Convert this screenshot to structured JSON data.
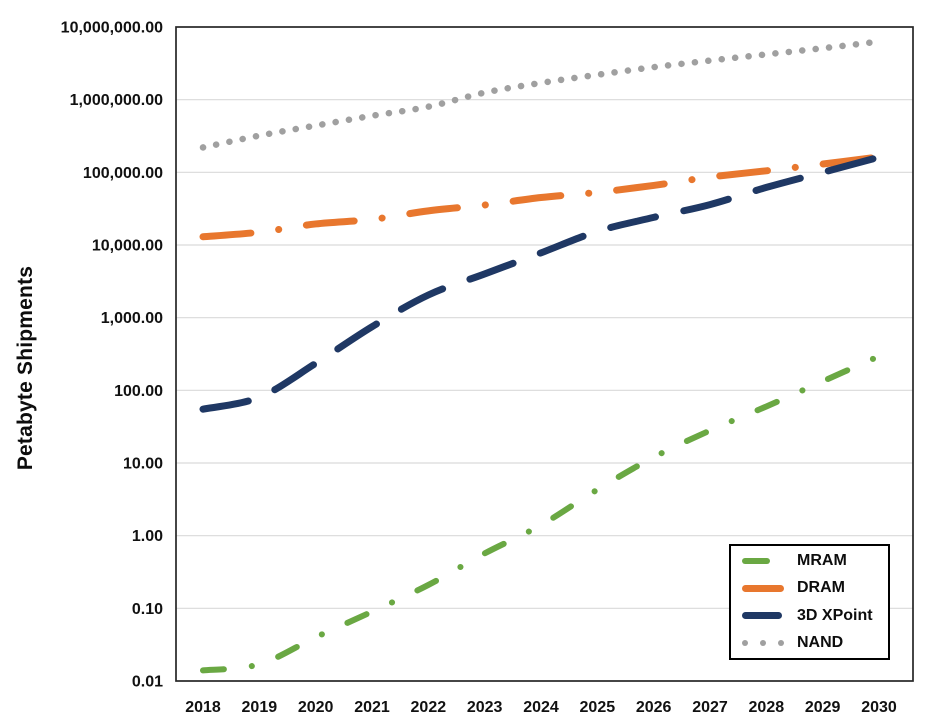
{
  "chart_data": {
    "type": "line",
    "title": "",
    "ylabel": "Petabyte Shipments",
    "xlabel": "",
    "y_scale": "log",
    "ylim": [
      0.01,
      10000000
    ],
    "grid": true,
    "legend_position": "inside-bottom-right",
    "x_labels": [
      "2018",
      "2019",
      "2020",
      "2021",
      "2022",
      "2023",
      "2024",
      "2025",
      "2026",
      "2027",
      "2028",
      "2029",
      "2030"
    ],
    "y_tick_values": [
      0.01,
      0.1,
      1,
      10,
      100,
      1000,
      10000,
      100000,
      1000000,
      10000000
    ],
    "y_tick_labels": [
      "0.01",
      "0.10",
      "1.00",
      "10.00",
      "100.00",
      "1,000.00",
      "10,000.00",
      "100,000.00",
      "1,000,000.00",
      "10,000,000.00"
    ],
    "series": [
      {
        "name": "MRAM",
        "color": "#6AA843",
        "style": "dash-dot",
        "values": [
          0.014,
          0.017,
          0.04,
          0.09,
          0.21,
          0.57,
          1.4,
          4.3,
          12,
          28,
          60,
          133,
          295
        ]
      },
      {
        "name": "DRAM",
        "color": "#E8772E",
        "style": "long-dash-dot",
        "values": [
          13000,
          15000,
          19500,
          22500,
          29500,
          35500,
          45000,
          53000,
          66000,
          86000,
          105000,
          130000,
          163000
        ]
      },
      {
        "name": "3D XPoint",
        "color": "#1F3864",
        "style": "long-dash",
        "values": [
          55,
          80,
          235,
          750,
          2050,
          4000,
          7800,
          15400,
          24000,
          36000,
          62000,
          100000,
          161000
        ]
      },
      {
        "name": "NAND",
        "color": "#A0A0A0",
        "style": "dot",
        "values": [
          220000,
          320000,
          440000,
          600000,
          800000,
          1250000,
          1700000,
          2200000,
          2800000,
          3450000,
          4200000,
          5100000,
          6300000
        ]
      }
    ]
  },
  "colors": {
    "gridline": "#D9D9D9",
    "plot_border": "#262626",
    "text": "#111111"
  }
}
